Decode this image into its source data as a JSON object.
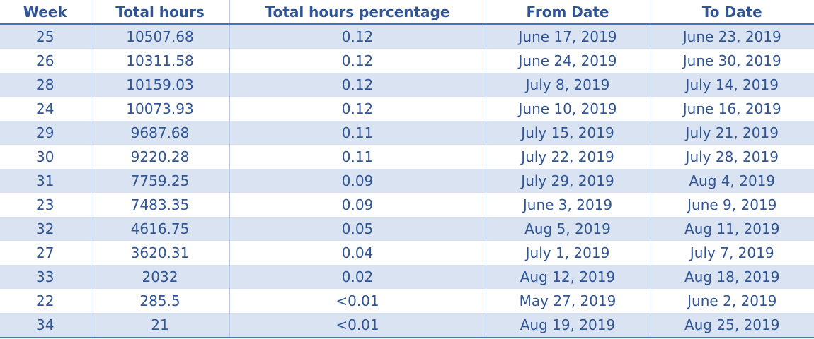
{
  "table": {
    "headers": [
      "Week",
      "Total hours",
      "Total hours percentage",
      "From Date",
      "To Date"
    ],
    "rows": [
      [
        "25",
        "10507.68",
        "0.12",
        "June 17, 2019",
        "June 23, 2019"
      ],
      [
        "26",
        "10311.58",
        "0.12",
        "June 24, 2019",
        "June 30, 2019"
      ],
      [
        "28",
        "10159.03",
        "0.12",
        "July 8, 2019",
        "July 14, 2019"
      ],
      [
        "24",
        "10073.93",
        "0.12",
        "June 10, 2019",
        "June 16, 2019"
      ],
      [
        "29",
        "9687.68",
        "0.11",
        "July 15, 2019",
        "July 21, 2019"
      ],
      [
        "30",
        "9220.28",
        "0.11",
        "July 22, 2019",
        "July 28, 2019"
      ],
      [
        "31",
        "7759.25",
        "0.09",
        "July 29, 2019",
        "Aug 4, 2019"
      ],
      [
        "23",
        "7483.35",
        "0.09",
        "June 3, 2019",
        "June 9, 2019"
      ],
      [
        "32",
        "4616.75",
        "0.05",
        "Aug 5, 2019",
        "Aug 11, 2019"
      ],
      [
        "27",
        "3620.31",
        "0.04",
        "July 1, 2019",
        "July 7, 2019"
      ],
      [
        "33",
        "2032",
        "0.02",
        "Aug 12, 2019",
        "Aug 18, 2019"
      ],
      [
        "22",
        "285.5",
        "<0.01",
        "May 27, 2019",
        "June 2, 2019"
      ],
      [
        "34",
        "21",
        "<0.01",
        "Aug 19, 2019",
        "Aug 25, 2019"
      ]
    ]
  },
  "colors": {
    "text": "#2f5597",
    "band": "#dae3f1",
    "rule": "#4472c4"
  }
}
